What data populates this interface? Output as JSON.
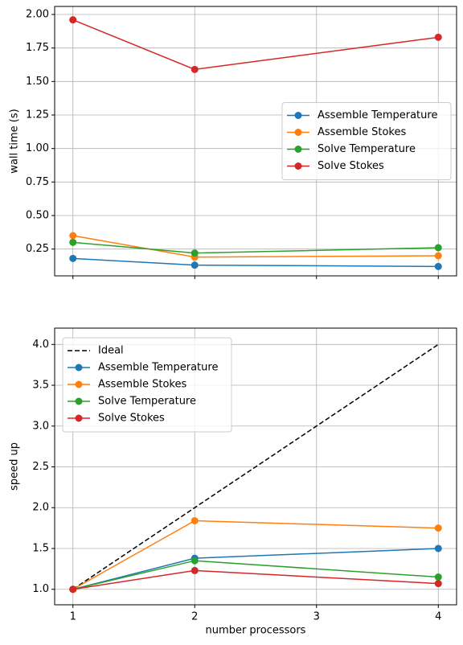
{
  "chart_data": [
    {
      "type": "line",
      "ylabel": "wall time (s)",
      "x": [
        1,
        2,
        4
      ],
      "xlim": [
        0.85,
        4.15
      ],
      "xticks": [
        1,
        2,
        3,
        4
      ],
      "show_xtick_labels": false,
      "ylim": [
        0.05,
        2.06
      ],
      "yticks": [
        {
          "value": 0.25,
          "label": "0.25"
        },
        {
          "value": 0.5,
          "label": "0.50"
        },
        {
          "value": 0.75,
          "label": "0.75"
        },
        {
          "value": 1,
          "label": "1.00"
        },
        {
          "value": 1.25,
          "label": "1.25"
        },
        {
          "value": 1.5,
          "label": "1.50"
        },
        {
          "value": 1.75,
          "label": "1.75"
        },
        {
          "value": 2,
          "label": "2.00"
        }
      ],
      "grid": true,
      "legend": "center right",
      "series": [
        {
          "name": "Assemble Temperature",
          "color": "#1f77b4",
          "marker": "o",
          "values": [
            0.18,
            0.13,
            0.12
          ]
        },
        {
          "name": "Assemble Stokes",
          "color": "#ff7f0e",
          "marker": "o",
          "values": [
            0.35,
            0.19,
            0.2
          ]
        },
        {
          "name": "Solve Temperature",
          "color": "#2ca02c",
          "marker": "o",
          "values": [
            0.3,
            0.22,
            0.26
          ]
        },
        {
          "name": "Solve Stokes",
          "color": "#d62728",
          "marker": "o",
          "values": [
            1.96,
            1.59,
            1.83
          ]
        }
      ]
    },
    {
      "type": "line",
      "xlabel": "number processors",
      "ylabel": "speed up",
      "x": [
        1,
        2,
        4
      ],
      "xlim": [
        0.85,
        4.15
      ],
      "xticks": [
        1,
        2,
        3,
        4
      ],
      "show_xtick_labels": true,
      "ylim": [
        0.81,
        4.2
      ],
      "yticks": [
        {
          "value": 1,
          "label": "1.0"
        },
        {
          "value": 1.5,
          "label": "1.5"
        },
        {
          "value": 2,
          "label": "2.0"
        },
        {
          "value": 2.5,
          "label": "2.5"
        },
        {
          "value": 3,
          "label": "3.0"
        },
        {
          "value": 3.5,
          "label": "3.5"
        },
        {
          "value": 4,
          "label": "4.0"
        }
      ],
      "grid": true,
      "legend": "upper left",
      "series": [
        {
          "name": "Ideal",
          "color": "#000000",
          "linestyle": "dashed",
          "values": [
            1,
            2,
            4
          ]
        },
        {
          "name": "Assemble Temperature",
          "color": "#1f77b4",
          "marker": "o",
          "values": [
            1,
            1.38,
            1.5
          ]
        },
        {
          "name": "Assemble Stokes",
          "color": "#ff7f0e",
          "marker": "o",
          "values": [
            1,
            1.84,
            1.75
          ]
        },
        {
          "name": "Solve Temperature",
          "color": "#2ca02c",
          "marker": "o",
          "values": [
            1,
            1.35,
            1.15
          ]
        },
        {
          "name": "Solve Stokes",
          "color": "#d62728",
          "marker": "o",
          "values": [
            1,
            1.23,
            1.07
          ]
        }
      ]
    }
  ]
}
